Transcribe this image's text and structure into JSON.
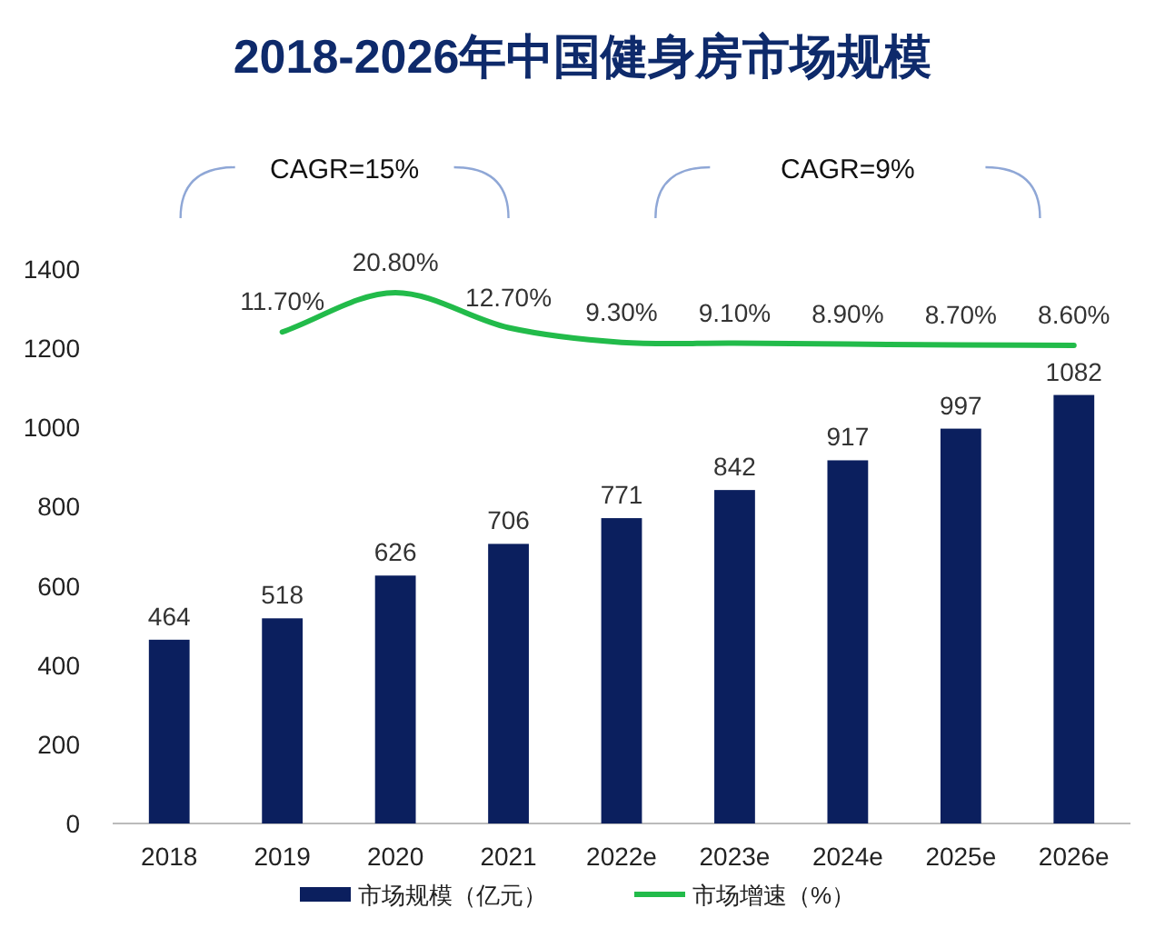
{
  "chart_data": {
    "type": "bar",
    "title": "2018-2026年中国健身房市场规模",
    "categories": [
      "2018",
      "2019",
      "2020",
      "2021",
      "2022e",
      "2023e",
      "2024e",
      "2025e",
      "2026e"
    ],
    "series": [
      {
        "name": "市场规模（亿元）",
        "color": "#0b1f5e",
        "values": [
          464,
          518,
          626,
          706,
          771,
          842,
          917,
          997,
          1082
        ]
      },
      {
        "name": "市场增速（%）",
        "type": "line",
        "axis": "y2",
        "color": "#22bb4a",
        "values": [
          null,
          11.7,
          20.8,
          12.7,
          9.3,
          9.1,
          8.9,
          8.7,
          8.6
        ],
        "value_labels": [
          null,
          "11.70%",
          "20.80%",
          "12.70%",
          "9.30%",
          "9.10%",
          "8.90%",
          "8.70%",
          "8.60%"
        ]
      }
    ],
    "ylim": [
      0,
      1400
    ],
    "yticks": [
      0,
      200,
      400,
      600,
      800,
      1000,
      1200,
      1400
    ],
    "data_labels": true,
    "grid": false,
    "legend": "bottom",
    "marker": "none",
    "line_style": "solid",
    "annotations": [
      "CAGR=15%",
      "CAGR=9%"
    ]
  }
}
